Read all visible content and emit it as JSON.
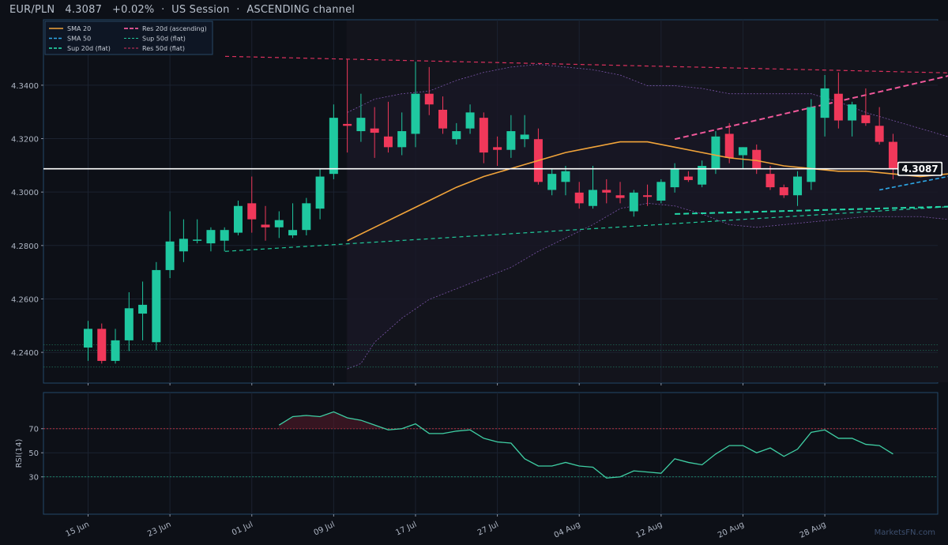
{
  "header": {
    "symbol": "EUR/PLN",
    "price": "4.3087",
    "change": "+0.02%",
    "session": "US Session",
    "channel": "ASCENDING channel",
    "sep": "·"
  },
  "watermark": "MarketsFN.com",
  "colors": {
    "background": "#0d1017",
    "up": "#1fc8a0",
    "down": "#f0385a",
    "sma20": "#f2a43a",
    "sma50": "#2ea8e8",
    "sup": "#20c99a",
    "res20": "#f0589a",
    "res50": "#d8305c",
    "bands": "#7a55a8",
    "rsi": "#3fcfa4",
    "grid": "#1b2230",
    "axis": "#23496a"
  },
  "chart_data": [
    {
      "type": "candlestick",
      "title": "EUR/PLN  4.3087  +0.02%  ·  US Session  ·  ASCENDING channel",
      "x_tick_labels": [
        "15 Jun",
        "23 Jun",
        "01 Jul",
        "09 Jul",
        "17 Jul",
        "27 Jul",
        "04 Aug",
        "12 Aug",
        "20 Aug",
        "28 Aug"
      ],
      "x_tick_index": [
        0,
        6,
        12,
        18,
        24,
        30,
        36,
        42,
        48,
        54
      ],
      "y_ticks": [
        4.24,
        4.26,
        4.28,
        4.3,
        4.32,
        4.34
      ],
      "ylim": [
        4.2285,
        4.3645
      ],
      "candles": [
        {
          "o": 4.2418,
          "h": 4.2518,
          "l": 4.2368,
          "c": 4.2488
        },
        {
          "o": 4.2488,
          "h": 4.2508,
          "l": 4.2358,
          "c": 4.2368
        },
        {
          "o": 4.2368,
          "h": 4.2488,
          "l": 4.2358,
          "c": 4.2445
        },
        {
          "o": 4.2445,
          "h": 4.2625,
          "l": 4.2405,
          "c": 4.2565
        },
        {
          "o": 4.2545,
          "h": 4.2665,
          "l": 4.2445,
          "c": 4.2578
        },
        {
          "o": 4.2438,
          "h": 4.2738,
          "l": 4.2408,
          "c": 4.2708
        },
        {
          "o": 4.2708,
          "h": 4.2928,
          "l": 4.2678,
          "c": 4.2815
        },
        {
          "o": 4.2778,
          "h": 4.2898,
          "l": 4.2738,
          "c": 4.2825
        },
        {
          "o": 4.2818,
          "h": 4.2898,
          "l": 4.2808,
          "c": 4.2822
        },
        {
          "o": 4.2808,
          "h": 4.2868,
          "l": 4.2778,
          "c": 4.2858
        },
        {
          "o": 4.2818,
          "h": 4.2868,
          "l": 4.2778,
          "c": 4.2858
        },
        {
          "o": 4.2848,
          "h": 4.2968,
          "l": 4.2838,
          "c": 4.2948
        },
        {
          "o": 4.2958,
          "h": 4.3058,
          "l": 4.2848,
          "c": 4.2898
        },
        {
          "o": 4.2878,
          "h": 4.2948,
          "l": 4.2818,
          "c": 4.2868
        },
        {
          "o": 4.2868,
          "h": 4.2928,
          "l": 4.2828,
          "c": 4.2895
        },
        {
          "o": 4.2838,
          "h": 4.2958,
          "l": 4.2828,
          "c": 4.2858
        },
        {
          "o": 4.2858,
          "h": 4.2978,
          "l": 4.2838,
          "c": 4.2958
        },
        {
          "o": 4.2938,
          "h": 4.3088,
          "l": 4.2898,
          "c": 4.3058
        },
        {
          "o": 4.3068,
          "h": 4.3328,
          "l": 4.3048,
          "c": 4.3278
        },
        {
          "o": 4.3255,
          "h": 4.3498,
          "l": 4.3148,
          "c": 4.3248
        },
        {
          "o": 4.3228,
          "h": 4.3368,
          "l": 4.3188,
          "c": 4.3278
        },
        {
          "o": 4.3238,
          "h": 4.3318,
          "l": 4.3128,
          "c": 4.3222
        },
        {
          "o": 4.3208,
          "h": 4.3338,
          "l": 4.3148,
          "c": 4.3168
        },
        {
          "o": 4.3168,
          "h": 4.3298,
          "l": 4.3138,
          "c": 4.3228
        },
        {
          "o": 4.3218,
          "h": 4.3488,
          "l": 4.3168,
          "c": 4.3368
        },
        {
          "o": 4.3368,
          "h": 4.3468,
          "l": 4.3288,
          "c": 4.3328
        },
        {
          "o": 4.3308,
          "h": 4.3358,
          "l": 4.3218,
          "c": 4.3238
        },
        {
          "o": 4.3198,
          "h": 4.3258,
          "l": 4.3178,
          "c": 4.3228
        },
        {
          "o": 4.3238,
          "h": 4.3328,
          "l": 4.3218,
          "c": 4.3298
        },
        {
          "o": 4.3278,
          "h": 4.3298,
          "l": 4.3108,
          "c": 4.3148
        },
        {
          "o": 4.3168,
          "h": 4.3208,
          "l": 4.3098,
          "c": 4.3158
        },
        {
          "o": 4.3158,
          "h": 4.3288,
          "l": 4.3128,
          "c": 4.3228
        },
        {
          "o": 4.3198,
          "h": 4.3288,
          "l": 4.3168,
          "c": 4.3215
        },
        {
          "o": 4.3198,
          "h": 4.3238,
          "l": 4.3028,
          "c": 4.3038
        },
        {
          "o": 4.3008,
          "h": 4.3088,
          "l": 4.2988,
          "c": 4.3068
        },
        {
          "o": 4.3038,
          "h": 4.3098,
          "l": 4.2988,
          "c": 4.3078
        },
        {
          "o": 4.2998,
          "h": 4.3038,
          "l": 4.2938,
          "c": 4.2958
        },
        {
          "o": 4.2948,
          "h": 4.3098,
          "l": 4.2938,
          "c": 4.3008
        },
        {
          "o": 4.3008,
          "h": 4.3048,
          "l": 4.2958,
          "c": 4.2998
        },
        {
          "o": 4.2988,
          "h": 4.3038,
          "l": 4.2958,
          "c": 4.2978
        },
        {
          "o": 4.2928,
          "h": 4.3008,
          "l": 4.2908,
          "c": 4.2998
        },
        {
          "o": 4.2988,
          "h": 4.3028,
          "l": 4.2948,
          "c": 4.2982
        },
        {
          "o": 4.2968,
          "h": 4.3048,
          "l": 4.2958,
          "c": 4.3038
        },
        {
          "o": 4.3018,
          "h": 4.3108,
          "l": 4.2998,
          "c": 4.3088
        },
        {
          "o": 4.3058,
          "h": 4.3078,
          "l": 4.3038,
          "c": 4.3045
        },
        {
          "o": 4.3028,
          "h": 4.3118,
          "l": 4.3018,
          "c": 4.3098
        },
        {
          "o": 4.3088,
          "h": 4.3228,
          "l": 4.3068,
          "c": 4.3208
        },
        {
          "o": 4.3218,
          "h": 4.3258,
          "l": 4.3108,
          "c": 4.3128
        },
        {
          "o": 4.3138,
          "h": 4.3168,
          "l": 4.3088,
          "c": 4.3168
        },
        {
          "o": 4.3158,
          "h": 4.3178,
          "l": 4.3068,
          "c": 4.3088
        },
        {
          "o": 4.3068,
          "h": 4.3098,
          "l": 4.3008,
          "c": 4.3018
        },
        {
          "o": 4.3018,
          "h": 4.3028,
          "l": 4.2978,
          "c": 4.2988
        },
        {
          "o": 4.2988,
          "h": 4.3078,
          "l": 4.2948,
          "c": 4.3058
        },
        {
          "o": 4.3038,
          "h": 4.3348,
          "l": 4.3008,
          "c": 4.3318
        },
        {
          "o": 4.3278,
          "h": 4.3438,
          "l": 4.3208,
          "c": 4.3388
        },
        {
          "o": 4.3368,
          "h": 4.3448,
          "l": 4.3238,
          "c": 4.3268
        },
        {
          "o": 4.3268,
          "h": 4.3338,
          "l": 4.3208,
          "c": 4.3328
        },
        {
          "o": 4.3288,
          "h": 4.3388,
          "l": 4.3248,
          "c": 4.3258
        },
        {
          "o": 4.3248,
          "h": 4.3318,
          "l": 4.3178,
          "c": 4.3188
        },
        {
          "o": 4.3188,
          "h": 4.3218,
          "l": 4.3048,
          "c": 4.3087
        }
      ],
      "sma20": [
        {
          "i": 19,
          "v": 4.2818
        },
        {
          "i": 21,
          "v": 4.2868
        },
        {
          "i": 23,
          "v": 4.2918
        },
        {
          "i": 25,
          "v": 4.2968
        },
        {
          "i": 27,
          "v": 4.3018
        },
        {
          "i": 29,
          "v": 4.3058
        },
        {
          "i": 31,
          "v": 4.3088
        },
        {
          "i": 33,
          "v": 4.3118
        },
        {
          "i": 35,
          "v": 4.3148
        },
        {
          "i": 37,
          "v": 4.3168
        },
        {
          "i": 39,
          "v": 4.3188
        },
        {
          "i": 41,
          "v": 4.3188
        },
        {
          "i": 43,
          "v": 4.3168
        },
        {
          "i": 45,
          "v": 4.3148
        },
        {
          "i": 47,
          "v": 4.3128
        },
        {
          "i": 49,
          "v": 4.3118
        },
        {
          "i": 51,
          "v": 4.3098
        },
        {
          "i": 53,
          "v": 4.3088
        },
        {
          "i": 55,
          "v": 4.3078
        },
        {
          "i": 57,
          "v": 4.3078
        },
        {
          "i": 59,
          "v": 4.3068
        },
        {
          "i": 61,
          "v": 4.3058
        },
        {
          "i": 63,
          "v": 4.3068
        },
        {
          "i": 65,
          "v": 4.3088
        },
        {
          "i": 67,
          "v": 4.3108
        },
        {
          "i": 69,
          "v": 4.3128
        },
        {
          "i": 70,
          "v": 4.3133
        }
      ],
      "sma50": [
        {
          "i": 58,
          "v": 4.3008
        },
        {
          "i": 60,
          "v": 4.3028
        },
        {
          "i": 62,
          "v": 4.3048
        },
        {
          "i": 64,
          "v": 4.3068
        },
        {
          "i": 66,
          "v": 4.3088
        },
        {
          "i": 68,
          "v": 4.3103
        },
        {
          "i": 70,
          "v": 4.3113
        }
      ],
      "bands_upper": [
        {
          "i": 19,
          "v": 4.3298
        },
        {
          "i": 21,
          "v": 4.3348
        },
        {
          "i": 23,
          "v": 4.3368
        },
        {
          "i": 25,
          "v": 4.3378
        },
        {
          "i": 27,
          "v": 4.3418
        },
        {
          "i": 29,
          "v": 4.3448
        },
        {
          "i": 31,
          "v": 4.3468
        },
        {
          "i": 33,
          "v": 4.3478
        },
        {
          "i": 35,
          "v": 4.3468
        },
        {
          "i": 37,
          "v": 4.3458
        },
        {
          "i": 39,
          "v": 4.3438
        },
        {
          "i": 41,
          "v": 4.3398
        },
        {
          "i": 43,
          "v": 4.3398
        },
        {
          "i": 45,
          "v": 4.3388
        },
        {
          "i": 47,
          "v": 4.3368
        },
        {
          "i": 49,
          "v": 4.3368
        },
        {
          "i": 51,
          "v": 4.3368
        },
        {
          "i": 53,
          "v": 4.3368
        },
        {
          "i": 55,
          "v": 4.3338
        },
        {
          "i": 57,
          "v": 4.3298
        },
        {
          "i": 59,
          "v": 4.3268
        },
        {
          "i": 61,
          "v": 4.3238
        },
        {
          "i": 63,
          "v": 4.3208
        },
        {
          "i": 65,
          "v": 4.3278
        },
        {
          "i": 67,
          "v": 4.3368
        },
        {
          "i": 69,
          "v": 4.3388
        },
        {
          "i": 70,
          "v": 4.3383
        }
      ],
      "bands_lower": [
        {
          "i": 19,
          "v": 4.2338
        },
        {
          "i": 20,
          "v": 4.2358
        },
        {
          "i": 21,
          "v": 4.2438
        },
        {
          "i": 23,
          "v": 4.2528
        },
        {
          "i": 25,
          "v": 4.2598
        },
        {
          "i": 27,
          "v": 4.2638
        },
        {
          "i": 29,
          "v": 4.2678
        },
        {
          "i": 31,
          "v": 4.2718
        },
        {
          "i": 33,
          "v": 4.2778
        },
        {
          "i": 35,
          "v": 4.2828
        },
        {
          "i": 37,
          "v": 4.2878
        },
        {
          "i": 39,
          "v": 4.2938
        },
        {
          "i": 41,
          "v": 4.2958
        },
        {
          "i": 43,
          "v": 4.2948
        },
        {
          "i": 45,
          "v": 4.2918
        },
        {
          "i": 47,
          "v": 4.2878
        },
        {
          "i": 49,
          "v": 4.2868
        },
        {
          "i": 51,
          "v": 4.2878
        },
        {
          "i": 53,
          "v": 4.2888
        },
        {
          "i": 55,
          "v": 4.2898
        },
        {
          "i": 57,
          "v": 4.2908
        },
        {
          "i": 59,
          "v": 4.2908
        },
        {
          "i": 61,
          "v": 4.2908
        },
        {
          "i": 63,
          "v": 4.2898
        },
        {
          "i": 65,
          "v": 4.2848
        },
        {
          "i": 67,
          "v": 4.2848
        },
        {
          "i": 69,
          "v": 4.2868
        },
        {
          "i": 70,
          "v": 4.2888
        }
      ],
      "trendlines": [
        {
          "name": "Res 50d (flat)",
          "from": {
            "i": 10,
            "v": 4.3508
          },
          "to": {
            "i": 70,
            "v": 4.3438
          },
          "style": "dash",
          "label": "4.3438"
        },
        {
          "name": "Res 20d (ascending)",
          "from": {
            "i": 43,
            "v": 4.3198
          },
          "to": {
            "i": 70,
            "v": 4.3517
          },
          "style": "dash",
          "label": "4.3517"
        },
        {
          "name": "Sup 50d (flat)",
          "from": {
            "i": 10,
            "v": 4.2778
          },
          "to": {
            "i": 70,
            "v": 4.2967
          },
          "style": "dash",
          "label": "4.2967"
        },
        {
          "name": "Sup 20d (flat)",
          "from": {
            "i": 43,
            "v": 4.2918
          },
          "to": {
            "i": 70,
            "v": 4.2955
          },
          "style": "dash",
          "label": "4.2955"
        }
      ],
      "price_line": 4.3087,
      "price_label": "4.3087",
      "horizontal_levels": [
        4.2428,
        4.2408,
        4.2345
      ],
      "legend": [
        "SMA 20",
        "SMA 50",
        "Sup 20d (flat)",
        "Res 20d (ascending)",
        "Sup 50d (flat)",
        "Res 50d (flat)"
      ],
      "legend_position": "top-left",
      "grid": true
    },
    {
      "type": "line",
      "ylabel": "RSI(14)",
      "y_ticks": [
        30,
        50,
        70
      ],
      "ylim": [
        -1,
        100
      ],
      "overbought": 70,
      "oversold": 30,
      "values": [
        {
          "i": 14,
          "v": 73
        },
        {
          "i": 15,
          "v": 80
        },
        {
          "i": 16,
          "v": 81
        },
        {
          "i": 17,
          "v": 80
        },
        {
          "i": 18,
          "v": 84
        },
        {
          "i": 19,
          "v": 79
        },
        {
          "i": 20,
          "v": 77
        },
        {
          "i": 21,
          "v": 73
        },
        {
          "i": 22,
          "v": 69
        },
        {
          "i": 23,
          "v": 70
        },
        {
          "i": 24,
          "v": 74
        },
        {
          "i": 25,
          "v": 66
        },
        {
          "i": 26,
          "v": 66
        },
        {
          "i": 27,
          "v": 68
        },
        {
          "i": 28,
          "v": 69
        },
        {
          "i": 29,
          "v": 62
        },
        {
          "i": 30,
          "v": 59
        },
        {
          "i": 31,
          "v": 58
        },
        {
          "i": 32,
          "v": 45
        },
        {
          "i": 33,
          "v": 39
        },
        {
          "i": 34,
          "v": 39
        },
        {
          "i": 35,
          "v": 42
        },
        {
          "i": 36,
          "v": 39
        },
        {
          "i": 37,
          "v": 38
        },
        {
          "i": 38,
          "v": 29
        },
        {
          "i": 39,
          "v": 30
        },
        {
          "i": 40,
          "v": 35
        },
        {
          "i": 41,
          "v": 34
        },
        {
          "i": 42,
          "v": 33
        },
        {
          "i": 43,
          "v": 45
        },
        {
          "i": 44,
          "v": 42
        },
        {
          "i": 45,
          "v": 40
        },
        {
          "i": 46,
          "v": 49
        },
        {
          "i": 47,
          "v": 56
        },
        {
          "i": 48,
          "v": 56
        },
        {
          "i": 49,
          "v": 50
        },
        {
          "i": 50,
          "v": 54
        },
        {
          "i": 51,
          "v": 47
        },
        {
          "i": 52,
          "v": 53
        },
        {
          "i": 53,
          "v": 67
        },
        {
          "i": 54,
          "v": 69
        },
        {
          "i": 55,
          "v": 62
        },
        {
          "i": 56,
          "v": 62
        },
        {
          "i": 57,
          "v": 57
        },
        {
          "i": 58,
          "v": 56
        },
        {
          "i": 59,
          "v": 49
        }
      ]
    }
  ]
}
